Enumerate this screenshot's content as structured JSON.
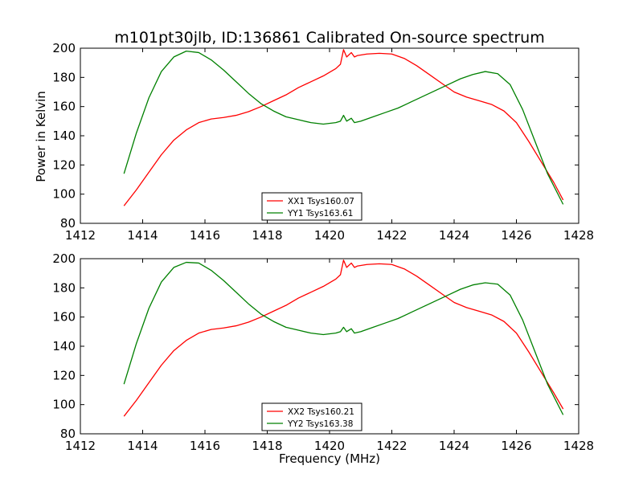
{
  "figure": {
    "title": "m101pt30jlb, ID:136861 Calibrated On-source spectrum",
    "ylabel": "Power in Kelvin",
    "xlabel": "Frequency (MHz)"
  },
  "colors": {
    "xx": "#ff0000",
    "yy": "#008000"
  },
  "chart_data": [
    {
      "type": "line",
      "xlim": [
        1412,
        1428
      ],
      "ylim": [
        80,
        200
      ],
      "xticks": [
        1412,
        1414,
        1416,
        1418,
        1420,
        1422,
        1424,
        1426,
        1428
      ],
      "yticks": [
        80,
        100,
        120,
        140,
        160,
        180,
        200
      ],
      "legend_position": "bottom-center",
      "series": [
        {
          "name": "XX1 Tsys160.07",
          "color": "#ff0000",
          "x": [
            1413.4,
            1413.8,
            1414.2,
            1414.6,
            1415.0,
            1415.4,
            1415.8,
            1416.2,
            1416.6,
            1417.0,
            1417.4,
            1417.8,
            1418.2,
            1418.6,
            1419.0,
            1419.4,
            1419.8,
            1420.2,
            1420.35,
            1420.45,
            1420.55,
            1420.7,
            1420.8,
            1420.9,
            1421.2,
            1421.6,
            1422.0,
            1422.4,
            1422.8,
            1423.2,
            1423.6,
            1424.0,
            1424.4,
            1424.8,
            1425.2,
            1425.6,
            1426.0,
            1426.4,
            1426.8,
            1427.2,
            1427.5
          ],
          "y": [
            92,
            103,
            115,
            127,
            137,
            144,
            149,
            151.5,
            152.5,
            154,
            156.5,
            160,
            164,
            168,
            173,
            177,
            181,
            186,
            189,
            199,
            194,
            197,
            194,
            195,
            196,
            196.5,
            196,
            193,
            188,
            182,
            176,
            170,
            166.5,
            164,
            161.5,
            157,
            149,
            136,
            122,
            108,
            96
          ]
        },
        {
          "name": "YY1 Tsys163.61",
          "color": "#008000",
          "x": [
            1413.4,
            1413.8,
            1414.2,
            1414.6,
            1415.0,
            1415.4,
            1415.8,
            1416.2,
            1416.6,
            1417.0,
            1417.4,
            1417.8,
            1418.2,
            1418.6,
            1419.0,
            1419.4,
            1419.8,
            1420.2,
            1420.35,
            1420.45,
            1420.55,
            1420.7,
            1420.8,
            1421.0,
            1421.4,
            1421.8,
            1422.2,
            1422.6,
            1423.0,
            1423.4,
            1423.8,
            1424.2,
            1424.6,
            1425.0,
            1425.4,
            1425.8,
            1426.2,
            1426.6,
            1427.0,
            1427.5
          ],
          "y": [
            114,
            142,
            166,
            184,
            194,
            198,
            197,
            192,
            185,
            177,
            169,
            162,
            157,
            153,
            151,
            149,
            148,
            149,
            150,
            154,
            150,
            152,
            149,
            150,
            153,
            156,
            159,
            163,
            167,
            171,
            175,
            179,
            182,
            184,
            182.5,
            175,
            158,
            136,
            114,
            93
          ]
        }
      ]
    },
    {
      "type": "line",
      "xlim": [
        1412,
        1428
      ],
      "ylim": [
        80,
        200
      ],
      "xticks": [
        1412,
        1414,
        1416,
        1418,
        1420,
        1422,
        1424,
        1426,
        1428
      ],
      "yticks": [
        80,
        100,
        120,
        140,
        160,
        180,
        200
      ],
      "legend_position": "bottom-center",
      "series": [
        {
          "name": "XX2 Tsys160.21",
          "color": "#ff0000",
          "x": [
            1413.4,
            1413.8,
            1414.2,
            1414.6,
            1415.0,
            1415.4,
            1415.8,
            1416.2,
            1416.6,
            1417.0,
            1417.4,
            1417.8,
            1418.2,
            1418.6,
            1419.0,
            1419.4,
            1419.8,
            1420.2,
            1420.35,
            1420.45,
            1420.55,
            1420.7,
            1420.8,
            1420.9,
            1421.2,
            1421.6,
            1422.0,
            1422.4,
            1422.8,
            1423.2,
            1423.6,
            1424.0,
            1424.4,
            1424.8,
            1425.2,
            1425.6,
            1426.0,
            1426.4,
            1426.8,
            1427.2,
            1427.5
          ],
          "y": [
            92,
            103,
            115,
            127,
            137,
            144,
            149,
            151.5,
            152.5,
            154,
            156.5,
            160,
            164,
            168,
            173,
            177,
            181,
            186,
            189,
            199,
            194,
            197,
            194,
            195,
            196,
            196.5,
            196,
            193,
            188,
            182,
            176,
            170,
            166.5,
            164,
            161.5,
            157,
            149,
            136,
            122,
            108,
            97
          ]
        },
        {
          "name": "YY2 Tsys163.38",
          "color": "#008000",
          "x": [
            1413.4,
            1413.8,
            1414.2,
            1414.6,
            1415.0,
            1415.4,
            1415.8,
            1416.2,
            1416.6,
            1417.0,
            1417.4,
            1417.8,
            1418.2,
            1418.6,
            1419.0,
            1419.4,
            1419.8,
            1420.2,
            1420.35,
            1420.45,
            1420.55,
            1420.7,
            1420.8,
            1421.0,
            1421.4,
            1421.8,
            1422.2,
            1422.6,
            1423.0,
            1423.4,
            1423.8,
            1424.2,
            1424.6,
            1425.0,
            1425.4,
            1425.8,
            1426.2,
            1426.6,
            1427.0,
            1427.5
          ],
          "y": [
            114,
            142,
            166,
            184,
            194,
            197.5,
            197,
            192,
            185,
            177,
            169,
            162,
            157,
            153,
            151,
            149,
            148,
            149,
            150,
            153,
            150,
            152,
            149,
            150,
            153,
            156,
            159,
            163,
            167,
            171,
            175,
            179,
            182,
            183.5,
            182.5,
            175,
            158,
            136,
            114,
            93
          ]
        }
      ]
    }
  ]
}
